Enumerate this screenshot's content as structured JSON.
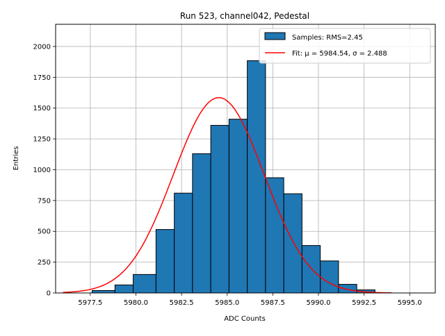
{
  "chart_data": {
    "type": "bar",
    "title": "Run 523, channel042, Pedestal",
    "xlabel": "ADC Counts",
    "ylabel": "Entries",
    "xlim": [
      5975.6,
      5996.4
    ],
    "ylim": [
      0,
      2180
    ],
    "grid": true,
    "legend_position": "top-right",
    "xticks": [
      5977.5,
      5980.0,
      5982.5,
      5985.0,
      5987.5,
      5990.0,
      5992.5,
      5995.0
    ],
    "xtick_labels": [
      "5977.5",
      "5980.0",
      "5982.5",
      "5985.0",
      "5987.5",
      "5990.0",
      "5992.5",
      "5995.0"
    ],
    "yticks": [
      0,
      250,
      500,
      750,
      1000,
      1250,
      1500,
      1750,
      2000
    ],
    "ytick_labels": [
      "0",
      "250",
      "500",
      "750",
      "1000",
      "1250",
      "1500",
      "1750",
      "2000"
    ],
    "histogram": {
      "name": "Samples: RMS=2.45",
      "color": "#1f77b4",
      "edgecolor": "#000000",
      "bins": [
        {
          "x0": 5977.6,
          "x1": 5978.85,
          "count": 20
        },
        {
          "x0": 5978.85,
          "x1": 5979.85,
          "count": 65
        },
        {
          "x0": 5979.85,
          "x1": 5981.1,
          "count": 150
        },
        {
          "x0": 5981.1,
          "x1": 5982.1,
          "count": 515
        },
        {
          "x0": 5982.1,
          "x1": 5983.1,
          "count": 810
        },
        {
          "x0": 5983.1,
          "x1": 5984.1,
          "count": 1130
        },
        {
          "x0": 5984.1,
          "x1": 5985.1,
          "count": 1360
        },
        {
          "x0": 5985.1,
          "x1": 5986.1,
          "count": 1410
        },
        {
          "x0": 5986.1,
          "x1": 5987.1,
          "count": 1885
        },
        {
          "x0": 5987.1,
          "x1": 5988.1,
          "count": 935
        },
        {
          "x0": 5988.1,
          "x1": 5989.1,
          "count": 805
        },
        {
          "x0": 5989.1,
          "x1": 5990.1,
          "count": 385
        },
        {
          "x0": 5990.1,
          "x1": 5991.1,
          "count": 260
        },
        {
          "x0": 5991.1,
          "x1": 5992.1,
          "count": 70
        },
        {
          "x0": 5992.1,
          "x1": 5993.1,
          "count": 25
        }
      ]
    },
    "fit": {
      "name": "Fit: μ = 5984.54, σ = 2.488",
      "color": "#ff0000",
      "mu": 5984.54,
      "sigma": 2.488,
      "amplitude": 1585,
      "x_range": [
        5976.0,
        5994.0
      ]
    },
    "legend": [
      {
        "label": "Samples: RMS=2.45",
        "kind": "patch",
        "color": "#1f77b4"
      },
      {
        "label": "Fit: μ = 5984.54, σ = 2.488",
        "kind": "line",
        "color": "#ff0000"
      }
    ]
  }
}
